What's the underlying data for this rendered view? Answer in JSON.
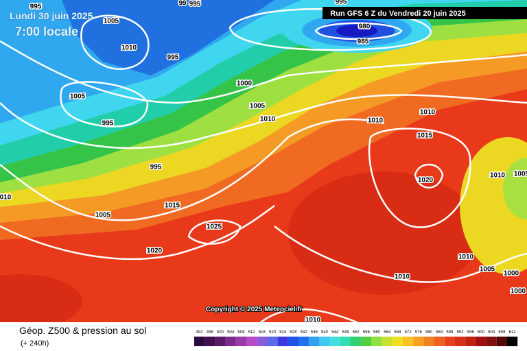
{
  "header": {
    "date": "Lundi 30 juin 2025",
    "time": "7:00 locale",
    "run": "Run GFS 6 Z du Vendredi 20 juin 2025"
  },
  "isobar_labels": [
    "995",
    "99",
    "995",
    "995",
    "1005",
    "1010",
    "995",
    "1005",
    "995",
    "995",
    "1000",
    "1005",
    "1010",
    "1015",
    "1005",
    "1025",
    "1020",
    "010",
    "980",
    "985",
    "1010",
    "1010",
    "1015",
    "1020",
    "1010",
    "1005",
    "1010",
    "1005",
    "1000",
    "1000",
    "1010",
    "1010"
  ],
  "copyright": "Copyright © 2025 Meteociel.fr",
  "footer": {
    "title": "Géop. Z500 & pression au sol",
    "lead": "(+ 240h)"
  },
  "colorbar": {
    "levels": [
      492,
      496,
      500,
      504,
      508,
      512,
      516,
      520,
      524,
      528,
      532,
      536,
      540,
      544,
      548,
      552,
      556,
      560,
      564,
      568,
      572,
      576,
      580,
      584,
      588,
      592,
      596,
      600,
      604,
      608,
      612
    ]
  }
}
